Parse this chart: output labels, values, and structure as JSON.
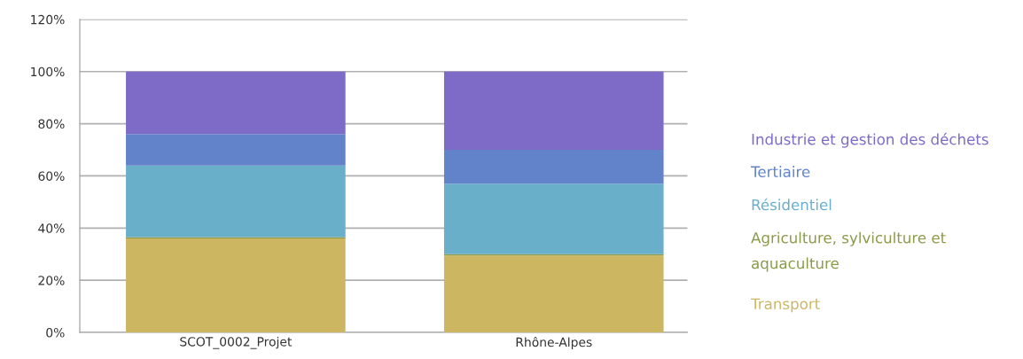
{
  "chart_data": {
    "type": "bar",
    "stacked": true,
    "categories": [
      "SCOT_0002_Projet",
      "Rhône-Alpes"
    ],
    "series": [
      {
        "name": "Transport",
        "color": "#cdb662",
        "values": [
          36,
          29.5
        ]
      },
      {
        "name": "Agriculture, sylviculture et\naquaculture",
        "color": "#8a9a4a",
        "values": [
          0.5,
          0.5
        ]
      },
      {
        "name": "Résidentiel",
        "color": "#6aafca",
        "values": [
          27.5,
          27
        ]
      },
      {
        "name": "Tertiaire",
        "color": "#6283c9",
        "values": [
          12,
          13
        ]
      },
      {
        "name": "Industrie et gestion des déchets",
        "color": "#7e6bc8",
        "values": [
          24,
          30
        ]
      }
    ],
    "ylim": [
      0,
      120
    ],
    "yticks": [
      {
        "value": 0,
        "label": "0%"
      },
      {
        "value": 20,
        "label": "20%"
      },
      {
        "value": 40,
        "label": "40%"
      },
      {
        "value": 60,
        "label": "60%"
      },
      {
        "value": 80,
        "label": "80%"
      },
      {
        "value": 100,
        "label": "100%"
      },
      {
        "value": 120,
        "label": "120%"
      }
    ],
    "grid": "y",
    "legend": "right"
  }
}
